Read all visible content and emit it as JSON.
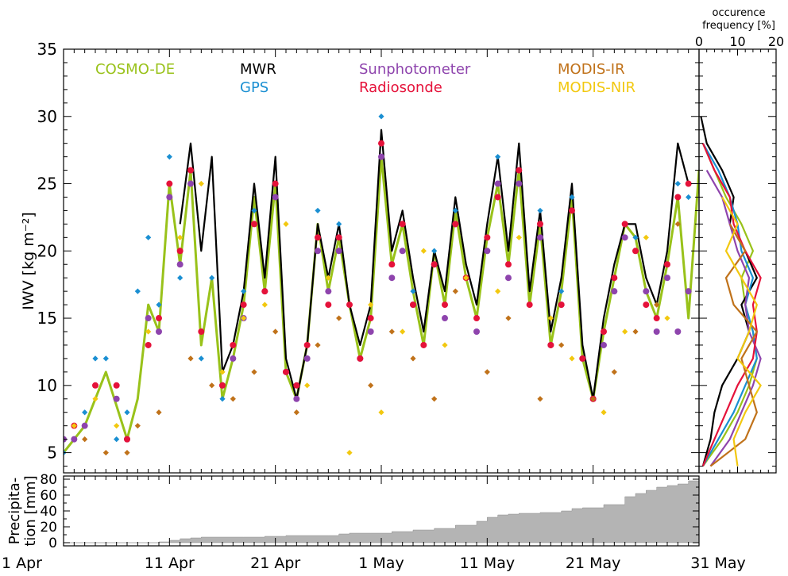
{
  "chart_data": [
    {
      "type": "line",
      "panel": "main-iwv-timeseries",
      "ylabel": "IWV [kg m⁻²]",
      "ylim": [
        3.5,
        35
      ],
      "yticks": [
        5,
        10,
        15,
        20,
        25,
        30,
        35
      ],
      "xlim_days": [
        1,
        61
      ],
      "legend_position": "top",
      "series": [
        {
          "name": "COSMO-DE",
          "color": "#99c21a",
          "marker": "line",
          "x": [
            1,
            3,
            5,
            7,
            8,
            9,
            10,
            11,
            12,
            13,
            14,
            15,
            16,
            17,
            18,
            19,
            20,
            21,
            22,
            23,
            24,
            25,
            26,
            27,
            28,
            29,
            30,
            31,
            32,
            33,
            34,
            35,
            36,
            37,
            38,
            39,
            40,
            41,
            42,
            43,
            44,
            45,
            46,
            47,
            48,
            49,
            50,
            51,
            52,
            53,
            54,
            55,
            56,
            57,
            58,
            59,
            60,
            61
          ],
          "y": [
            5,
            7,
            11,
            6,
            9,
            16,
            14,
            25,
            19,
            26,
            13,
            18,
            9,
            12,
            16,
            24,
            17,
            25,
            11,
            9,
            13,
            22,
            17,
            21,
            16,
            12,
            15,
            27,
            19,
            22,
            17,
            13,
            20,
            16,
            23,
            18,
            15,
            21,
            25,
            19,
            26,
            16,
            22,
            13,
            17,
            24,
            12,
            9,
            14,
            18,
            22,
            21,
            17,
            15,
            19,
            24,
            15,
            26
          ]
        },
        {
          "name": "MWR",
          "color": "#000000",
          "marker": "line",
          "x": [
            12,
            13,
            14,
            15,
            16,
            17,
            18,
            19,
            20,
            21,
            22,
            23,
            24,
            25,
            26,
            27,
            28,
            29,
            30,
            31,
            32,
            33,
            34,
            35,
            36,
            37,
            38,
            39,
            40,
            41,
            42,
            43,
            44,
            45,
            46,
            47,
            48,
            49,
            50,
            51,
            52,
            53,
            54,
            55,
            56,
            57,
            58,
            59,
            60
          ],
          "y": [
            22,
            28,
            20,
            27,
            11,
            13,
            17,
            25,
            18,
            27,
            12,
            9,
            13,
            22,
            18,
            22,
            16,
            13,
            16,
            29,
            20,
            23,
            18,
            14,
            20,
            17,
            24,
            19,
            16,
            22,
            27,
            20,
            28,
            17,
            23,
            14,
            18,
            25,
            13,
            9,
            15,
            19,
            22,
            22,
            18,
            16,
            20,
            28,
            25
          ]
        },
        {
          "name": "GPS",
          "color": "#1a8fd2",
          "marker": "diamond",
          "x": [
            1,
            3,
            4,
            5,
            6,
            7,
            8,
            9,
            10,
            11,
            12,
            13,
            14,
            15,
            16,
            17,
            18,
            19,
            20,
            21,
            22,
            23,
            24,
            25,
            26,
            27,
            28,
            29,
            30,
            31,
            32,
            33,
            34,
            35,
            36,
            37,
            38,
            39,
            40,
            41,
            42,
            43,
            44,
            45,
            46,
            47,
            48,
            49,
            50,
            51,
            52,
            53,
            54,
            55,
            56,
            57,
            58,
            59,
            60
          ],
          "y": [
            5,
            8,
            12,
            12,
            6,
            8,
            17,
            21,
            16,
            27,
            18,
            26,
            12,
            18,
            9,
            13,
            17,
            23,
            17,
            25,
            11,
            9,
            13,
            23,
            17,
            22,
            16,
            12,
            15,
            30,
            19,
            22,
            17,
            13,
            20,
            16,
            23,
            18,
            15,
            21,
            27,
            19,
            26,
            16,
            23,
            13,
            17,
            24,
            12,
            9,
            14,
            18,
            22,
            21,
            16,
            15,
            19,
            25,
            24
          ]
        },
        {
          "name": "Sunphotometer",
          "color": "#8e44ad",
          "marker": "dot",
          "x": [
            1,
            2,
            3,
            6,
            7,
            9,
            10,
            11,
            12,
            13,
            16,
            17,
            18,
            20,
            21,
            22,
            23,
            24,
            25,
            26,
            27,
            29,
            30,
            31,
            32,
            33,
            34,
            36,
            37,
            38,
            40,
            41,
            42,
            43,
            44,
            46,
            47,
            48,
            50,
            51,
            52,
            53,
            54,
            56,
            57,
            58,
            59,
            60
          ],
          "y": [
            6,
            6,
            7,
            9,
            6,
            15,
            14,
            24,
            19,
            25,
            10,
            12,
            15,
            17,
            24,
            11,
            9,
            12,
            20,
            17,
            20,
            12,
            14,
            27,
            18,
            20,
            16,
            19,
            15,
            22,
            14,
            20,
            25,
            18,
            25,
            21,
            13,
            16,
            12,
            9,
            13,
            17,
            21,
            17,
            14,
            18,
            14,
            17
          ]
        },
        {
          "name": "Radiosonde",
          "color": "#e5123a",
          "marker": "dot",
          "x": [
            2,
            4,
            6,
            7,
            9,
            10,
            11,
            12,
            13,
            14,
            16,
            17,
            18,
            19,
            20,
            21,
            22,
            23,
            24,
            25,
            26,
            27,
            28,
            29,
            30,
            31,
            32,
            33,
            34,
            35,
            36,
            37,
            38,
            39,
            40,
            41,
            42,
            43,
            44,
            45,
            46,
            47,
            48,
            49,
            50,
            51,
            52,
            53,
            54,
            55,
            56,
            57,
            58,
            59,
            60
          ],
          "y": [
            7,
            10,
            10,
            6,
            13,
            15,
            25,
            20,
            26,
            14,
            10,
            13,
            16,
            22,
            17,
            25,
            11,
            10,
            13,
            21,
            16,
            21,
            16,
            12,
            15,
            28,
            19,
            22,
            16,
            13,
            19,
            16,
            22,
            18,
            15,
            21,
            24,
            19,
            26,
            16,
            22,
            13,
            16,
            23,
            12,
            9,
            14,
            18,
            22,
            20,
            16,
            15,
            19,
            24,
            25
          ]
        },
        {
          "name": "MODIS-IR",
          "color": "#c0721a",
          "marker": "diamond",
          "x": [
            3,
            5,
            7,
            8,
            10,
            13,
            15,
            17,
            19,
            21,
            23,
            25,
            27,
            30,
            32,
            34,
            36,
            38,
            41,
            43,
            46,
            48,
            51,
            53,
            55,
            57,
            59
          ],
          "y": [
            6,
            5,
            5,
            7,
            8,
            12,
            10,
            9,
            11,
            14,
            8,
            13,
            15,
            10,
            14,
            12,
            9,
            17,
            11,
            15,
            9,
            13,
            9,
            11,
            14,
            16,
            22
          ]
        },
        {
          "name": "MODIS-NIR",
          "color": "#f2c80f",
          "marker": "diamond",
          "x": [
            2,
            4,
            6,
            9,
            12,
            14,
            16,
            18,
            20,
            22,
            24,
            26,
            28,
            30,
            31,
            33,
            35,
            37,
            39,
            42,
            44,
            47,
            49,
            52,
            54,
            56,
            58
          ],
          "y": [
            7,
            9,
            7,
            14,
            21,
            25,
            11,
            15,
            16,
            22,
            10,
            18,
            5,
            16,
            8,
            14,
            20,
            13,
            18,
            17,
            21,
            15,
            12,
            8,
            14,
            21,
            15
          ]
        }
      ]
    },
    {
      "type": "area",
      "panel": "precipitation",
      "ylabel": "Precipita-\ntion [mm]",
      "ylim": [
        0,
        80
      ],
      "yticks": [
        0,
        20,
        40,
        60,
        80
      ],
      "xlim_days": [
        1,
        61
      ],
      "color": "#b4b4b4",
      "x": [
        1,
        9,
        10,
        11,
        12,
        13,
        14,
        18,
        20,
        22,
        26,
        27,
        28,
        30,
        32,
        34,
        36,
        38,
        40,
        41,
        42,
        43,
        44,
        46,
        48,
        49,
        50,
        52,
        54,
        55,
        56,
        57,
        58,
        59,
        60,
        61
      ],
      "y": [
        0,
        0,
        1,
        3,
        5,
        6,
        7,
        7,
        8,
        9,
        9,
        11,
        12,
        12,
        14,
        16,
        18,
        22,
        27,
        32,
        35,
        36,
        37,
        38,
        40,
        43,
        44,
        48,
        58,
        62,
        66,
        70,
        72,
        74,
        78,
        80
      ]
    },
    {
      "type": "line",
      "panel": "occurrence-frequency",
      "title": "occurence\nfrequency [%]",
      "xlim": [
        0,
        20
      ],
      "xticks": [
        0,
        10,
        20
      ],
      "ylim": [
        3.5,
        35
      ],
      "series": [
        {
          "name": "COSMO-DE",
          "color": "#99c21a",
          "y": [
            4,
            6,
            8,
            10,
            12,
            14,
            16,
            18,
            20,
            22,
            24,
            26,
            28
          ],
          "freq": [
            1,
            6,
            10,
            13,
            15,
            14,
            12,
            11,
            14,
            11,
            7,
            4,
            1
          ]
        },
        {
          "name": "MWR",
          "color": "#000000",
          "y": [
            4,
            6,
            8,
            10,
            12,
            14,
            16,
            18,
            20,
            22,
            24,
            26,
            28,
            30
          ],
          "freq": [
            1,
            3,
            4,
            6,
            10,
            13,
            11,
            15,
            12,
            8,
            9,
            6,
            2,
            0.5
          ]
        },
        {
          "name": "GPS",
          "color": "#1a8fd2",
          "y": [
            4,
            6,
            8,
            10,
            12,
            14,
            16,
            18,
            20,
            22,
            24,
            26,
            28
          ],
          "freq": [
            1,
            5,
            9,
            12,
            15,
            14,
            12,
            14,
            11,
            10,
            8,
            5,
            1
          ]
        },
        {
          "name": "Sunphotometer",
          "color": "#8e44ad",
          "y": [
            4,
            6,
            8,
            10,
            12,
            14,
            16,
            18,
            20,
            22,
            24,
            26
          ],
          "freq": [
            3,
            8,
            11,
            14,
            16,
            13,
            12,
            13,
            10,
            8,
            6,
            2
          ]
        },
        {
          "name": "Radiosonde",
          "color": "#e5123a",
          "y": [
            4,
            6,
            8,
            10,
            12,
            14,
            16,
            18,
            20,
            22,
            24,
            26,
            28
          ],
          "freq": [
            1,
            4,
            7,
            10,
            14,
            15,
            14,
            16,
            12,
            9,
            8,
            4,
            1
          ]
        },
        {
          "name": "MODIS-IR",
          "color": "#c0721a",
          "y": [
            4,
            6,
            8,
            10,
            12,
            14,
            16,
            18,
            20,
            22
          ],
          "freq": [
            3,
            12,
            15,
            13,
            11,
            15,
            9,
            7,
            12,
            8
          ]
        },
        {
          "name": "MODIS-NIR",
          "color": "#f2c80f",
          "y": [
            4,
            6,
            8,
            10,
            12,
            14,
            16,
            18,
            20,
            22,
            24
          ],
          "freq": [
            10,
            9,
            12,
            16,
            10,
            13,
            15,
            11,
            7,
            10,
            6
          ]
        }
      ]
    }
  ],
  "axes": {
    "x_tick_labels": [
      {
        "label": "1 Apr",
        "day": 1
      },
      {
        "label": "11 Apr",
        "day": 11
      },
      {
        "label": "21 Apr",
        "day": 21
      },
      {
        "label": "1 May",
        "day": 31
      },
      {
        "label": "11 May",
        "day": 41
      },
      {
        "label": "21 May",
        "day": 51
      },
      {
        "label": "31 May",
        "day": 61
      }
    ]
  },
  "legend": {
    "entries": [
      {
        "label": "COSMO-DE",
        "color": "#99c21a"
      },
      {
        "label": "MWR",
        "color": "#000000"
      },
      {
        "label": "GPS",
        "color": "#1a8fd2"
      },
      {
        "label": "Sunphotometer",
        "color": "#8e44ad"
      },
      {
        "label": "Radiosonde",
        "color": "#e5123a"
      },
      {
        "label": "MODIS-IR",
        "color": "#c0721a"
      },
      {
        "label": "MODIS-NIR",
        "color": "#f2c80f"
      }
    ]
  }
}
